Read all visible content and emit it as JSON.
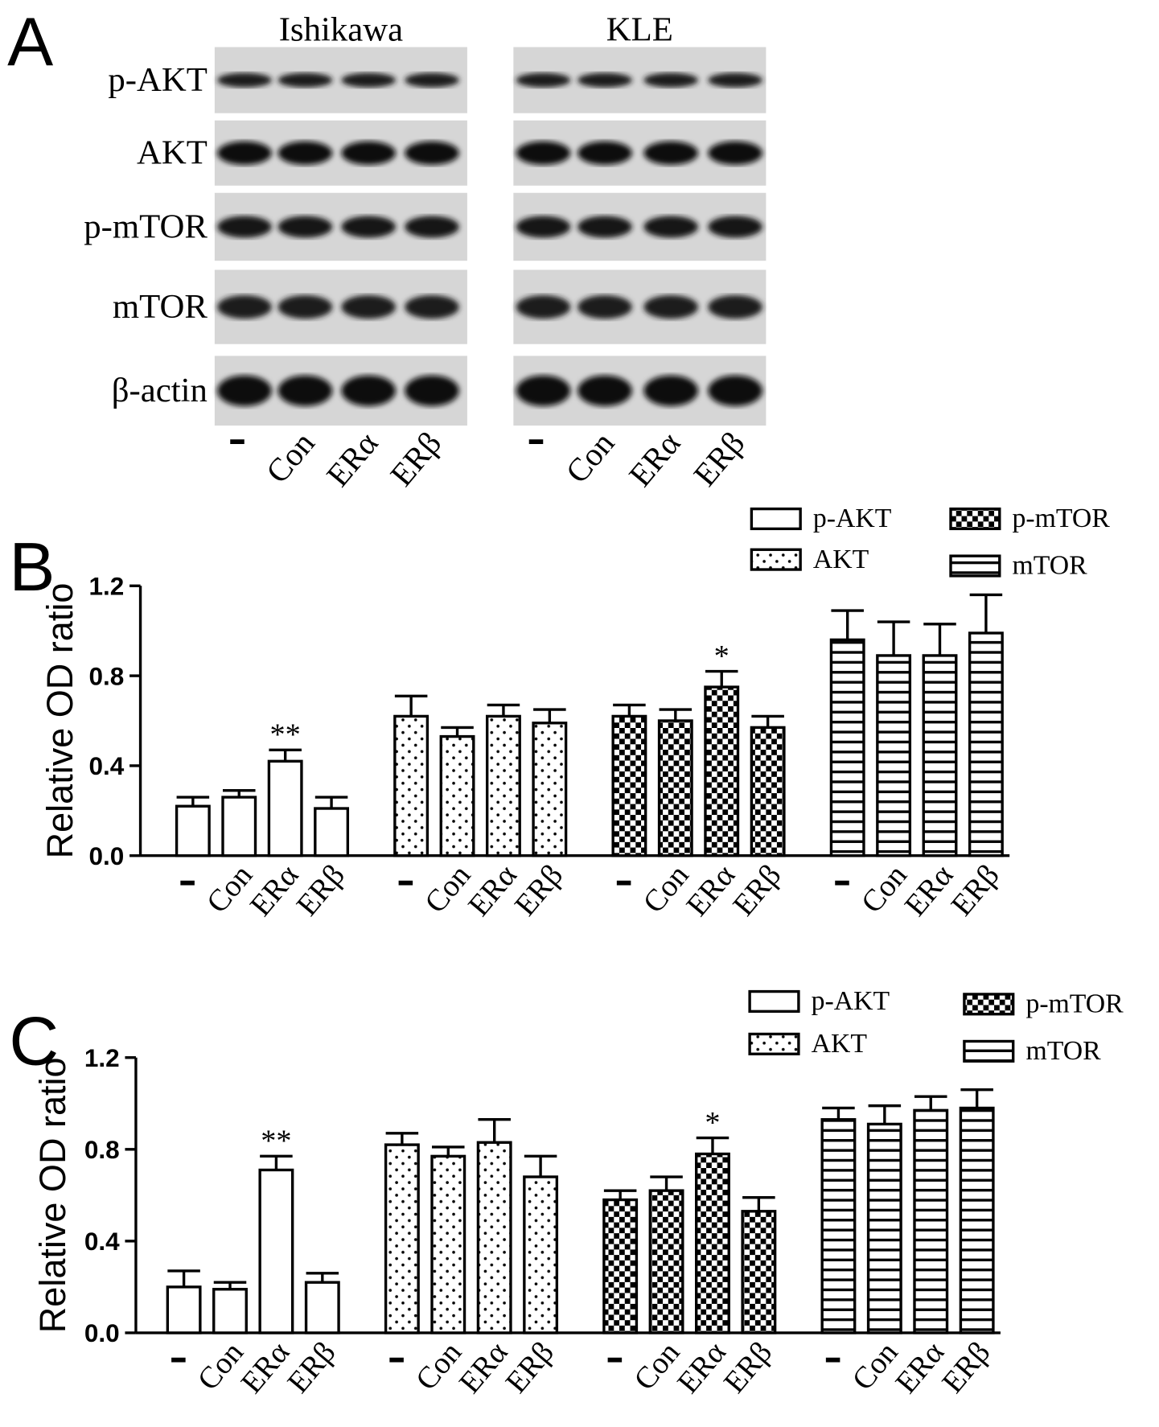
{
  "panel_a": {
    "label": "A",
    "cell_lines": [
      "Ishikawa",
      "KLE"
    ],
    "rows": [
      "p-AKT",
      "AKT",
      "p-mTOR",
      "mTOR",
      "β-actin"
    ],
    "lanes": [
      "-",
      "Con",
      "ERα",
      "ERβ"
    ]
  },
  "chart_data": [
    {
      "type": "bar",
      "label": "B",
      "y_label": "Relative OD ratio",
      "categories": [
        "-",
        "Con",
        "ERα",
        "ERβ"
      ],
      "ylim": [
        0,
        1.2
      ],
      "yticks": [
        {
          "value": 0,
          "label": "0.0"
        },
        0.4,
        0.8,
        1.2
      ],
      "legend": "upper right",
      "series": [
        {
          "name": "p-AKT",
          "color": "#000000",
          "pattern": "none",
          "values": [
            0.22,
            0.26,
            0.42,
            0.21
          ],
          "errors": [
            0.04,
            0.03,
            0.05,
            0.05
          ],
          "significance": [
            null,
            null,
            "**",
            null
          ]
        },
        {
          "name": "AKT",
          "color": "#000000",
          "pattern": "dots",
          "values": [
            0.62,
            0.53,
            0.62,
            0.59
          ],
          "errors": [
            0.09,
            0.04,
            0.05,
            0.06
          ]
        },
        {
          "name": "p-mTOR",
          "color": "#000000",
          "pattern": "checker",
          "values": [
            0.62,
            0.6,
            0.75,
            0.57
          ],
          "errors": [
            0.05,
            0.05,
            0.07,
            0.05
          ],
          "significance": [
            null,
            null,
            "*",
            null
          ]
        },
        {
          "name": "mTOR",
          "color": "#000000",
          "pattern": "hlines",
          "values": [
            0.96,
            0.89,
            0.89,
            0.99
          ],
          "errors": [
            0.13,
            0.15,
            0.14,
            0.17
          ]
        }
      ]
    },
    {
      "type": "bar",
      "label": "C",
      "y_label": "Relative OD ratio",
      "categories": [
        "-",
        "Con",
        "ERα",
        "ERβ"
      ],
      "ylim": [
        0,
        1.2
      ],
      "yticks": [
        {
          "value": 0,
          "label": "0.0"
        },
        0.4,
        0.8,
        1.2
      ],
      "legend": "upper right",
      "series": [
        {
          "name": "p-AKT",
          "color": "#000000",
          "pattern": "none",
          "values": [
            0.2,
            0.19,
            0.71,
            0.22
          ],
          "errors": [
            0.07,
            0.03,
            0.06,
            0.04
          ],
          "significance": [
            null,
            null,
            "**",
            null
          ]
        },
        {
          "name": "AKT",
          "color": "#000000",
          "pattern": "dots",
          "values": [
            0.82,
            0.77,
            0.83,
            0.68
          ],
          "errors": [
            0.05,
            0.04,
            0.1,
            0.09
          ]
        },
        {
          "name": "p-mTOR",
          "color": "#000000",
          "pattern": "checker",
          "values": [
            0.58,
            0.62,
            0.78,
            0.53
          ],
          "errors": [
            0.04,
            0.06,
            0.07,
            0.06
          ],
          "significance": [
            null,
            null,
            "*",
            null
          ]
        },
        {
          "name": "mTOR",
          "color": "#000000",
          "pattern": "hlines",
          "values": [
            0.93,
            0.91,
            0.97,
            0.98
          ],
          "errors": [
            0.05,
            0.08,
            0.06,
            0.08
          ]
        }
      ]
    }
  ]
}
